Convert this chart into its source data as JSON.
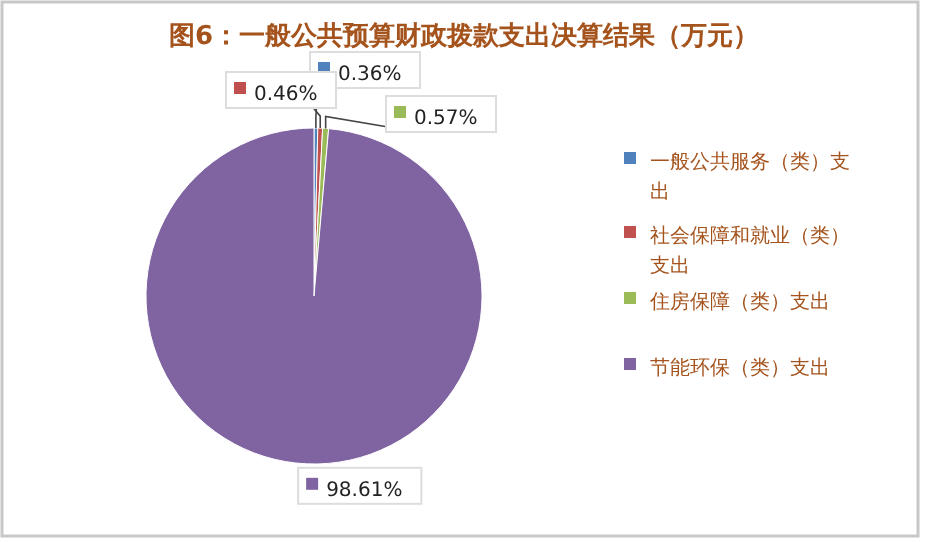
{
  "chart_data": {
    "type": "pie",
    "title": "图6：一般公共预算财政拨款支出决算结果（万元）",
    "categories": [
      "一般公共服务（类）支出",
      "社会保障和就业（类）支出",
      "住房保障（类）支出",
      "节能环保（类）支出"
    ],
    "values": [
      0.36,
      0.46,
      0.57,
      98.61
    ],
    "colors": [
      "#4f81bd",
      "#c0504d",
      "#9bbb59",
      "#8064a2"
    ],
    "value_labels": [
      "0.36%",
      "0.46%",
      "0.57%",
      "98.61%"
    ],
    "legend": "right"
  }
}
